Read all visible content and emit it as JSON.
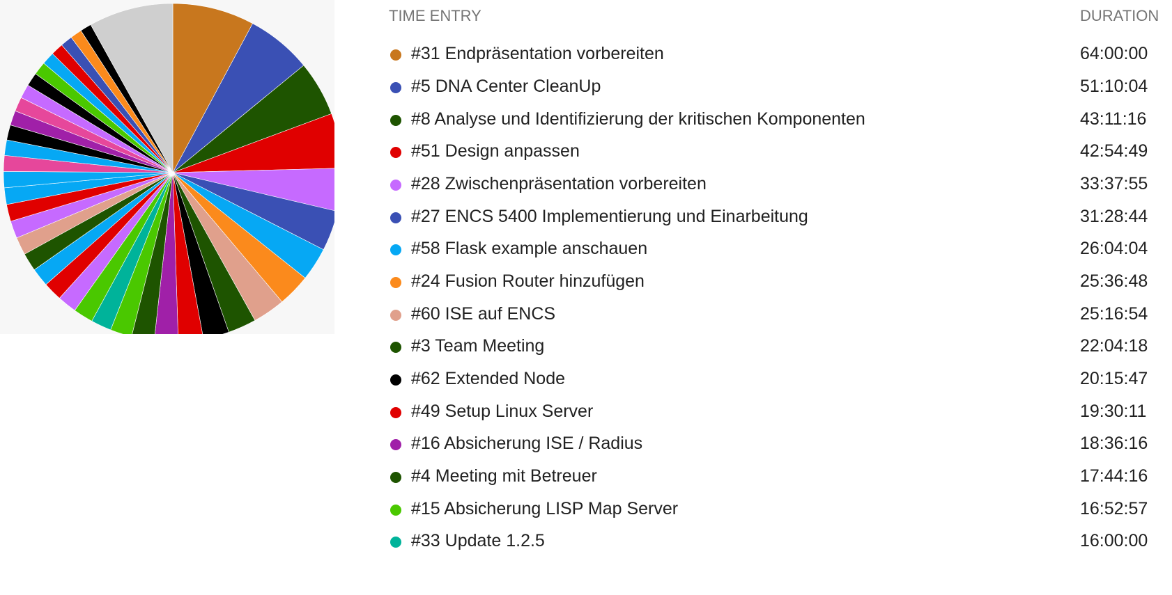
{
  "table": {
    "header_entry": "TIME ENTRY",
    "header_duration": "DURATION",
    "rows": [
      {
        "label": "#31 Endpräsentation vorbereiten",
        "duration": "64:00:00",
        "color": "#c8771e"
      },
      {
        "label": "#5 DNA Center CleanUp",
        "duration": "51:10:04",
        "color": "#3a50b4"
      },
      {
        "label": "#8 Analyse und Identifizierung der kritischen Komponenten",
        "duration": "43:11:16",
        "color": "#1e5400"
      },
      {
        "label": "#51 Design anpassen",
        "duration": "42:54:49",
        "color": "#e00000"
      },
      {
        "label": "#28 Zwischenpräsentation vorbereiten",
        "duration": "33:37:55",
        "color": "#c66aff"
      },
      {
        "label": "#27 ENCS 5400 Implementierung und Einarbeitung",
        "duration": "31:28:44",
        "color": "#3a50b4"
      },
      {
        "label": "#58 Flask example anschauen",
        "duration": "26:04:04",
        "color": "#06a8f4"
      },
      {
        "label": "#24 Fusion Router hinzufügen",
        "duration": "25:36:48",
        "color": "#fb8a1c"
      },
      {
        "label": "#60 ISE auf ENCS",
        "duration": "25:16:54",
        "color": "#e0a08c"
      },
      {
        "label": "#3 Team Meeting",
        "duration": "22:04:18",
        "color": "#1e5400"
      },
      {
        "label": "#62 Extended Node",
        "duration": "20:15:47",
        "color": "#000000"
      },
      {
        "label": "#49 Setup Linux Server",
        "duration": "19:30:11",
        "color": "#e00000"
      },
      {
        "label": "#16 Absicherung ISE / Radius",
        "duration": "18:36:16",
        "color": "#a020a8"
      },
      {
        "label": "#4 Meeting mit Betreuer",
        "duration": "17:44:16",
        "color": "#1e5400"
      },
      {
        "label": "#15 Absicherung LISP Map Server",
        "duration": "16:52:57",
        "color": "#4ac800"
      },
      {
        "label": "#33 Update 1.2.5",
        "duration": "16:00:00",
        "color": "#00b39a"
      }
    ]
  },
  "chart_data": {
    "type": "pie",
    "start_angle_deg": 0,
    "direction": "clockwise",
    "values": [
      64.0,
      51.168,
      43.188,
      42.914,
      33.632,
      31.479,
      26.068,
      25.613,
      25.282,
      22.072,
      20.263,
      19.503,
      18.604,
      17.738,
      16.883,
      16.0,
      15.5,
      15.1,
      14.8,
      14.5,
      14.2,
      13.9,
      13.6,
      13.3,
      13.0,
      12.7,
      12.4,
      12.1,
      11.8,
      11.5,
      11.2,
      10.9,
      10.6,
      10.3,
      10.0,
      9.7,
      9.4,
      9.1,
      8.8,
      66.0
    ],
    "colors": [
      "#c8771e",
      "#3a50b4",
      "#1e5400",
      "#e00000",
      "#c66aff",
      "#3a50b4",
      "#06a8f4",
      "#fb8a1c",
      "#e0a08c",
      "#1e5400",
      "#000000",
      "#e00000",
      "#a020a8",
      "#1e5400",
      "#4ac800",
      "#00b39a",
      "#4ac800",
      "#c66aff",
      "#e00000",
      "#06a8f4",
      "#1e5400",
      "#e0a08c",
      "#c66aff",
      "#e00000",
      "#06a8f4",
      "#06a8f4",
      "#e6479b",
      "#06a8f4",
      "#000000",
      "#a020a8",
      "#e6479b",
      "#c66aff",
      "#000000",
      "#4ac800",
      "#06a8f4",
      "#e00000",
      "#3a50b4",
      "#fb8a1c",
      "#000000",
      "#cfcfcf"
    ]
  }
}
